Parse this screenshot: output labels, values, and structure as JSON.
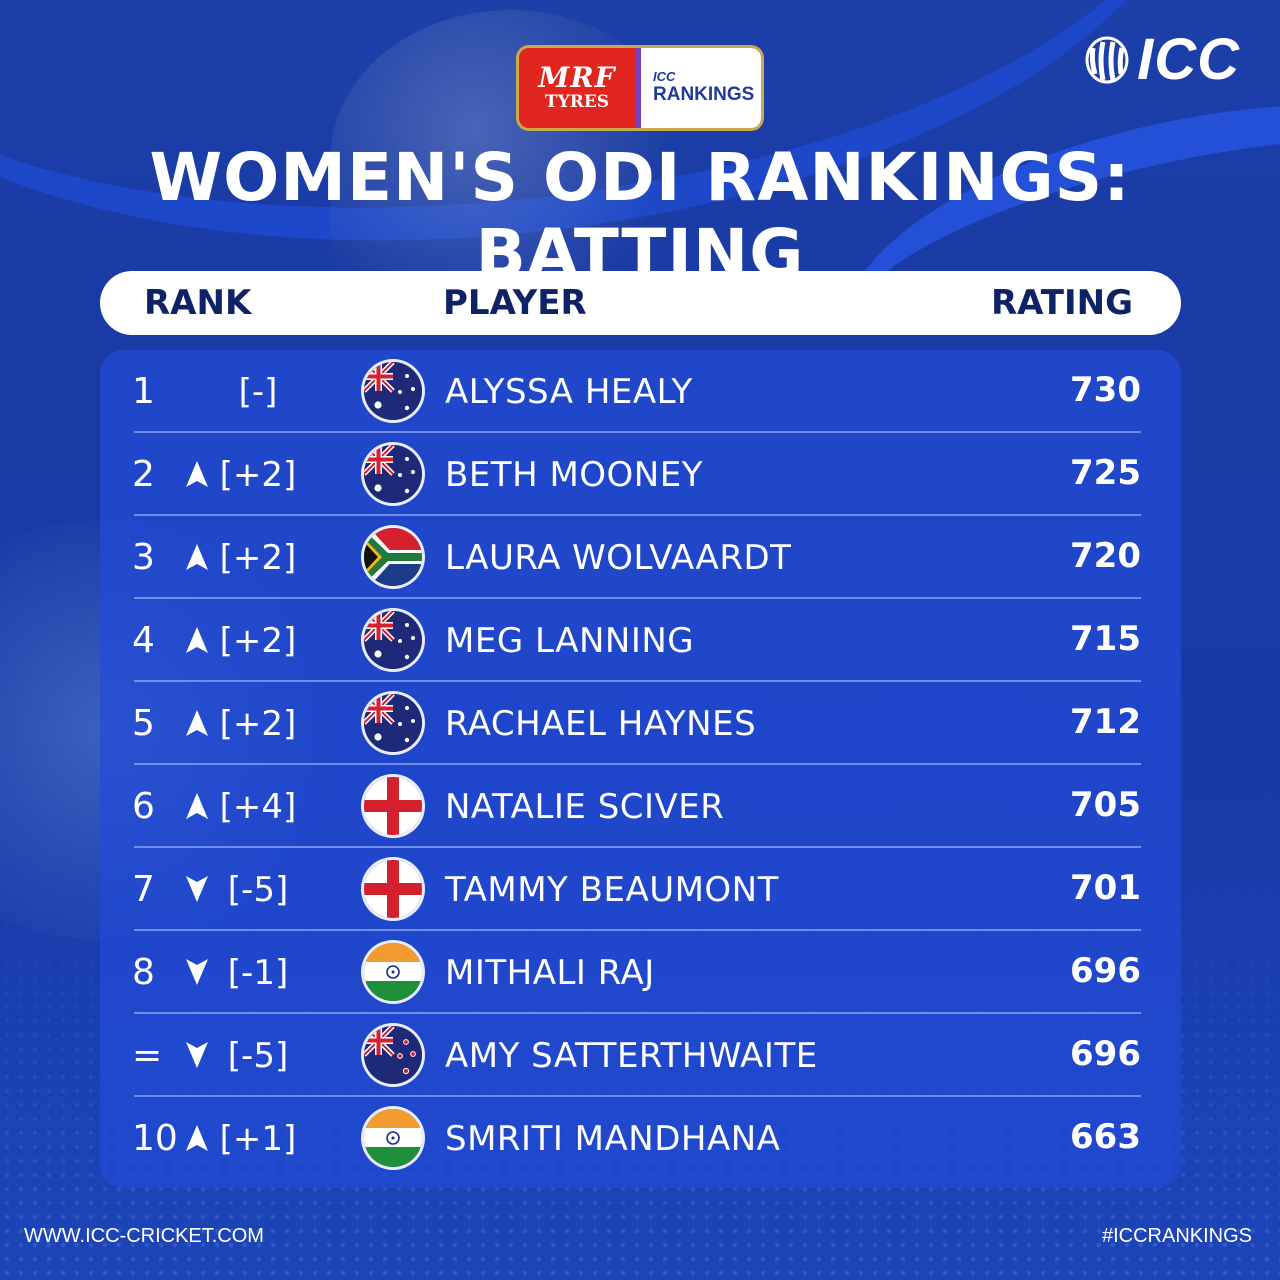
{
  "sponsor": {
    "brand_top": "MRF",
    "brand_bottom": "TYRES",
    "rankings_small": "ICC",
    "rankings_label": "RANKINGS"
  },
  "logo": {
    "text": "ICC"
  },
  "title": "WOMEN'S ODI RANKINGS: BATTING",
  "table": {
    "headers": {
      "rank": "RANK",
      "player": "PLAYER",
      "rating": "RATING"
    },
    "rows": [
      {
        "rank": "1",
        "movement": "none",
        "change": "[-]",
        "flag": "australia",
        "player": "ALYSSA HEALY",
        "rating": "730"
      },
      {
        "rank": "2",
        "movement": "up",
        "change": "[+2]",
        "flag": "australia",
        "player": "BETH MOONEY",
        "rating": "725"
      },
      {
        "rank": "3",
        "movement": "up",
        "change": "[+2]",
        "flag": "south-africa",
        "player": "LAURA WOLVAARDT",
        "rating": "720"
      },
      {
        "rank": "4",
        "movement": "up",
        "change": "[+2]",
        "flag": "australia",
        "player": "MEG LANNING",
        "rating": "715"
      },
      {
        "rank": "5",
        "movement": "up",
        "change": "[+2]",
        "flag": "australia",
        "player": "RACHAEL HAYNES",
        "rating": "712"
      },
      {
        "rank": "6",
        "movement": "up",
        "change": "[+4]",
        "flag": "england",
        "player": "NATALIE SCIVER",
        "rating": "705"
      },
      {
        "rank": "7",
        "movement": "down",
        "change": "[-5]",
        "flag": "england",
        "player": "TAMMY BEAUMONT",
        "rating": "701"
      },
      {
        "rank": "8",
        "movement": "down",
        "change": "[-1]",
        "flag": "india",
        "player": "MITHALI RAJ",
        "rating": "696"
      },
      {
        "rank": "=",
        "movement": "down",
        "change": "[-5]",
        "flag": "new-zealand",
        "player": "AMY SATTERTHWAITE",
        "rating": "696"
      },
      {
        "rank": "10",
        "movement": "up",
        "change": "[+1]",
        "flag": "india",
        "player": "SMRITI MANDHANA",
        "rating": "663"
      }
    ]
  },
  "footer": {
    "website": "WWW.ICC-CRICKET.COM",
    "hashtag": "#ICCRANKINGS"
  }
}
